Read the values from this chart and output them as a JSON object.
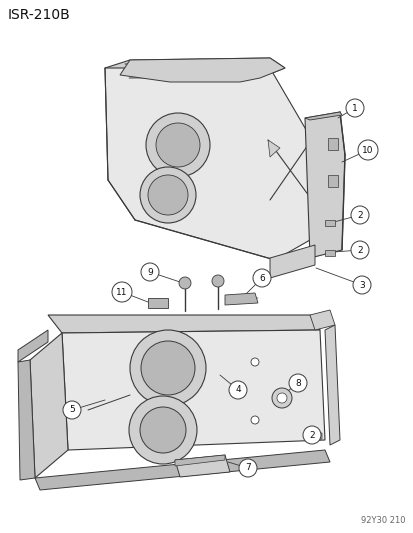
{
  "title": "ISR-210B",
  "subtitle": "92Y30 210",
  "bg_color": "#ffffff",
  "fig_width": 4.14,
  "fig_height": 5.33,
  "dpi": 100,
  "line_color": "#3a3a3a",
  "fill_light": "#e8e8e8",
  "fill_mid": "#d0d0d0",
  "fill_dark": "#b8b8b8",
  "text_color": "#111111",
  "label_fontsize": 6.5,
  "title_fontsize": 10,
  "subtitle_fontsize": 6
}
